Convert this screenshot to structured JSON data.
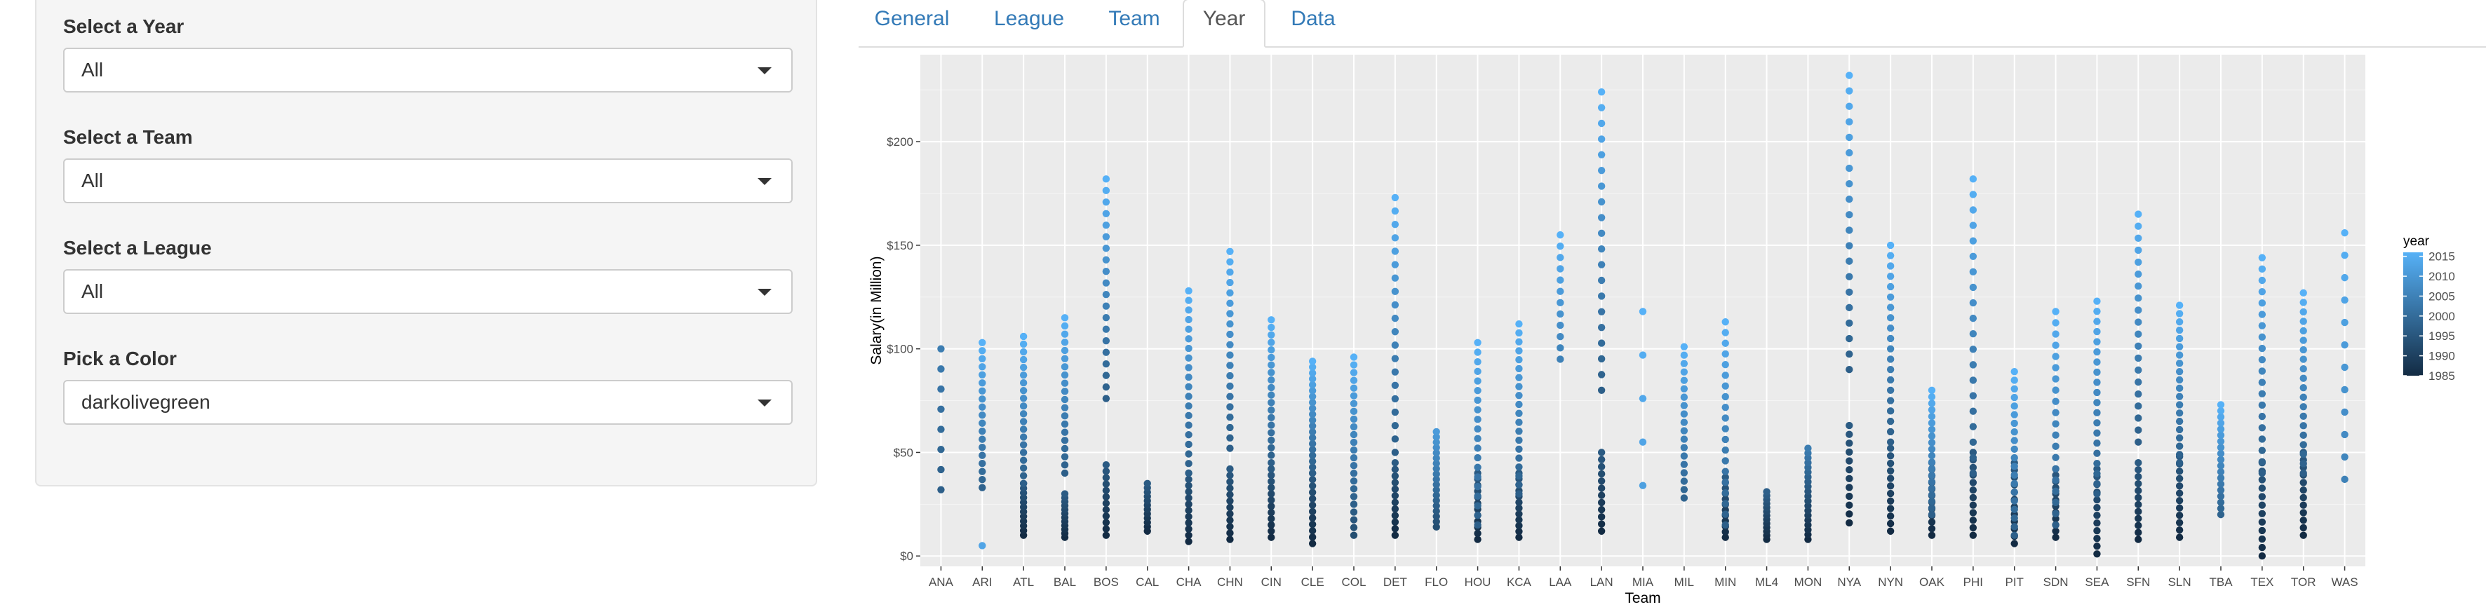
{
  "sidebar": {
    "fields": [
      {
        "label": "Select a Year",
        "value": "All"
      },
      {
        "label": "Select a Team",
        "value": "All"
      },
      {
        "label": "Select a League",
        "value": "All"
      },
      {
        "label": "Pick a Color",
        "value": "darkolivegreen"
      }
    ]
  },
  "tabs": [
    "General",
    "League",
    "Team",
    "Year",
    "Data"
  ],
  "active_tab": "Year",
  "chart_data": {
    "type": "scatter",
    "title": "",
    "xlabel": "Team",
    "ylabel": "Salary(in Million)",
    "categories": [
      "ANA",
      "ARI",
      "ATL",
      "BAL",
      "BOS",
      "CAL",
      "CHA",
      "CHN",
      "CIN",
      "CLE",
      "COL",
      "DET",
      "FLO",
      "HOU",
      "KCA",
      "LAA",
      "LAN",
      "MIA",
      "MIL",
      "MIN",
      "ML4",
      "MON",
      "NYA",
      "NYN",
      "OAK",
      "PHI",
      "PIT",
      "SDN",
      "SEA",
      "SFN",
      "SLN",
      "TBA",
      "TEX",
      "TOR",
      "WAS"
    ],
    "ylim": [
      -5,
      242
    ],
    "yticks": [
      0,
      50,
      100,
      150,
      200
    ],
    "ytick_labels": [
      "$0",
      "$50",
      "$100",
      "$150",
      "$200"
    ],
    "grid": true,
    "legend": {
      "title": "year",
      "position": "right",
      "labels": [
        "2015",
        "2010",
        "2005",
        "2000",
        "1995",
        "1990",
        "1985"
      ],
      "color_low": "#132B43",
      "color_high": "#56B1F7",
      "range": [
        1985,
        2016
      ]
    },
    "ranges": {
      "ANA": [
        [
          1997,
          2004,
          32,
          100
        ]
      ],
      "ARI": [
        [
          1998,
          2016,
          33,
          103
        ],
        [
          2013,
          2013,
          5,
          5
        ]
      ],
      "ATL": [
        [
          1985,
          1996,
          10,
          35
        ],
        [
          1997,
          2016,
          35,
          106
        ]
      ],
      "BAL": [
        [
          1985,
          1996,
          9,
          30
        ],
        [
          1997,
          2016,
          40,
          115
        ]
      ],
      "BOS": [
        [
          1985,
          1996,
          10,
          44
        ],
        [
          1997,
          2016,
          76,
          182
        ]
      ],
      "CAL": [
        [
          1985,
          1996,
          12,
          35
        ]
      ],
      "CHA": [
        [
          1985,
          1996,
          7,
          40
        ],
        [
          1997,
          2016,
          40,
          128
        ]
      ],
      "CHN": [
        [
          1985,
          1996,
          8,
          42
        ],
        [
          1997,
          2016,
          52,
          147
        ]
      ],
      "CIN": [
        [
          1985,
          1996,
          9,
          42
        ],
        [
          1997,
          2016,
          45,
          114
        ]
      ],
      "CLE": [
        [
          1985,
          1996,
          6,
          40
        ],
        [
          1997,
          2016,
          40,
          94
        ]
      ],
      "COL": [
        [
          1993,
          2016,
          10,
          96
        ]
      ],
      "DET": [
        [
          1985,
          1996,
          10,
          45
        ],
        [
          1997,
          2016,
          50,
          173
        ]
      ],
      "FLO": [
        [
          1993,
          2011,
          14,
          60
        ]
      ],
      "HOU": [
        [
          1985,
          1996,
          8,
          40
        ],
        [
          1997,
          2016,
          15,
          103
        ]
      ],
      "KCA": [
        [
          1985,
          1996,
          9,
          40
        ],
        [
          1997,
          2016,
          30,
          112
        ]
      ],
      "LAA": [
        [
          2005,
          2016,
          95,
          155
        ]
      ],
      "LAN": [
        [
          1985,
          1996,
          12,
          50
        ],
        [
          1997,
          2016,
          80,
          224
        ]
      ],
      "MIA": [
        [
          2012,
          2016,
          34,
          118
        ]
      ],
      "MIL": [
        [
          1998,
          2016,
          28,
          101
        ]
      ],
      "MIN": [
        [
          1985,
          1996,
          9,
          38
        ],
        [
          1997,
          2016,
          15,
          113
        ]
      ],
      "ML4": [
        [
          1985,
          1997,
          8,
          31
        ]
      ],
      "MON": [
        [
          1985,
          2004,
          8,
          52
        ]
      ],
      "NYA": [
        [
          1985,
          1996,
          16,
          63
        ],
        [
          1997,
          2016,
          90,
          232
        ]
      ],
      "NYN": [
        [
          1985,
          1996,
          12,
          52
        ],
        [
          1997,
          2016,
          55,
          150
        ]
      ],
      "OAK": [
        [
          1985,
          1996,
          10,
          45
        ],
        [
          1997,
          2016,
          20,
          80
        ]
      ],
      "PHI": [
        [
          1985,
          1996,
          10,
          50
        ],
        [
          1997,
          2016,
          40,
          182
        ]
      ],
      "PIT": [
        [
          1985,
          1996,
          6,
          45
        ],
        [
          1997,
          2016,
          10,
          89
        ]
      ],
      "SDN": [
        [
          1985,
          1996,
          9,
          42
        ],
        [
          1997,
          2016,
          15,
          118
        ]
      ],
      "SEA": [
        [
          1985,
          1996,
          1,
          42
        ],
        [
          1997,
          2016,
          30,
          123
        ]
      ],
      "SFN": [
        [
          1985,
          1996,
          8,
          45
        ],
        [
          1997,
          2016,
          55,
          165
        ]
      ],
      "SLN": [
        [
          1985,
          1996,
          9,
          48
        ],
        [
          1997,
          2016,
          45,
          121
        ]
      ],
      "TBA": [
        [
          1998,
          2016,
          20,
          73
        ]
      ],
      "TEX": [
        [
          1985,
          1996,
          0,
          45
        ],
        [
          1997,
          2016,
          40,
          144
        ]
      ],
      "TOR": [
        [
          1985,
          1996,
          10,
          50
        ],
        [
          1997,
          2016,
          40,
          127
        ]
      ],
      "WAS": [
        [
          2005,
          2016,
          37,
          156
        ]
      ]
    }
  }
}
